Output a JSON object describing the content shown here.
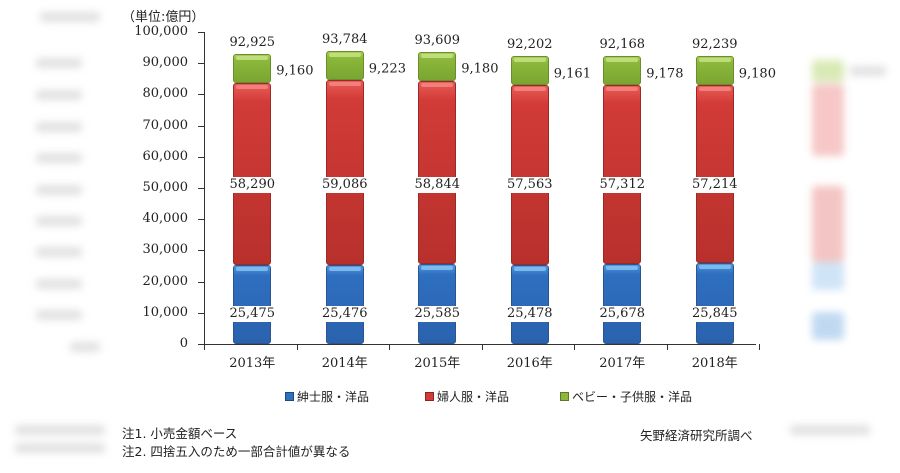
{
  "chart_data": {
    "type": "bar",
    "stacked": true,
    "unit_label": "（単位:億円）",
    "categories": [
      "2013年",
      "2014年",
      "2015年",
      "2016年",
      "2017年",
      "2018年"
    ],
    "series": [
      {
        "name": "紳士服・洋品",
        "color": "#2f6fc0",
        "values": [
          25475,
          25476,
          25585,
          25478,
          25678,
          25845
        ]
      },
      {
        "name": "婦人服・洋品",
        "color": "#d23b37",
        "values": [
          58290,
          59086,
          58844,
          57563,
          57312,
          57214
        ]
      },
      {
        "name": "ベビー・子供服・洋品",
        "color": "#8cb83b",
        "values": [
          9160,
          9223,
          9180,
          9161,
          9178,
          9180
        ]
      }
    ],
    "totals": [
      92925,
      93784,
      93609,
      92202,
      92168,
      92239
    ],
    "title": "",
    "xlabel": "",
    "ylabel": "（単位:億円）",
    "ylim": [
      0,
      100000
    ],
    "yticks": [
      "0",
      "10,000",
      "20,000",
      "30,000",
      "40,000",
      "50,000",
      "60,000",
      "70,000",
      "80,000",
      "90,000",
      "100,000"
    ],
    "grid": false,
    "legend_position": "bottom"
  },
  "labels": {
    "men": [
      "25,475",
      "25,476",
      "25,585",
      "25,478",
      "25,678",
      "25,845"
    ],
    "women": [
      "58,290",
      "59,086",
      "58,844",
      "57,563",
      "57,312",
      "57,214"
    ],
    "baby": [
      "9,160",
      "9,223",
      "9,180",
      "9,161",
      "9,178",
      "9,180"
    ],
    "totals": [
      "92,925",
      "93,784",
      "93,609",
      "92,202",
      "92,168",
      "92,239"
    ]
  },
  "legend": [
    {
      "label": "紳士服・洋品",
      "color": "#2f6fc0"
    },
    {
      "label": "婦人服・洋品",
      "color": "#d23b37"
    },
    {
      "label": "ベビー・子供服・洋品",
      "color": "#8cb83b"
    }
  ],
  "notes": {
    "note1": "注1. 小売金額ベース",
    "note2": "注2. 四捨五入のため一部合計値が異なる"
  },
  "source": "矢野経済研究所調べ"
}
